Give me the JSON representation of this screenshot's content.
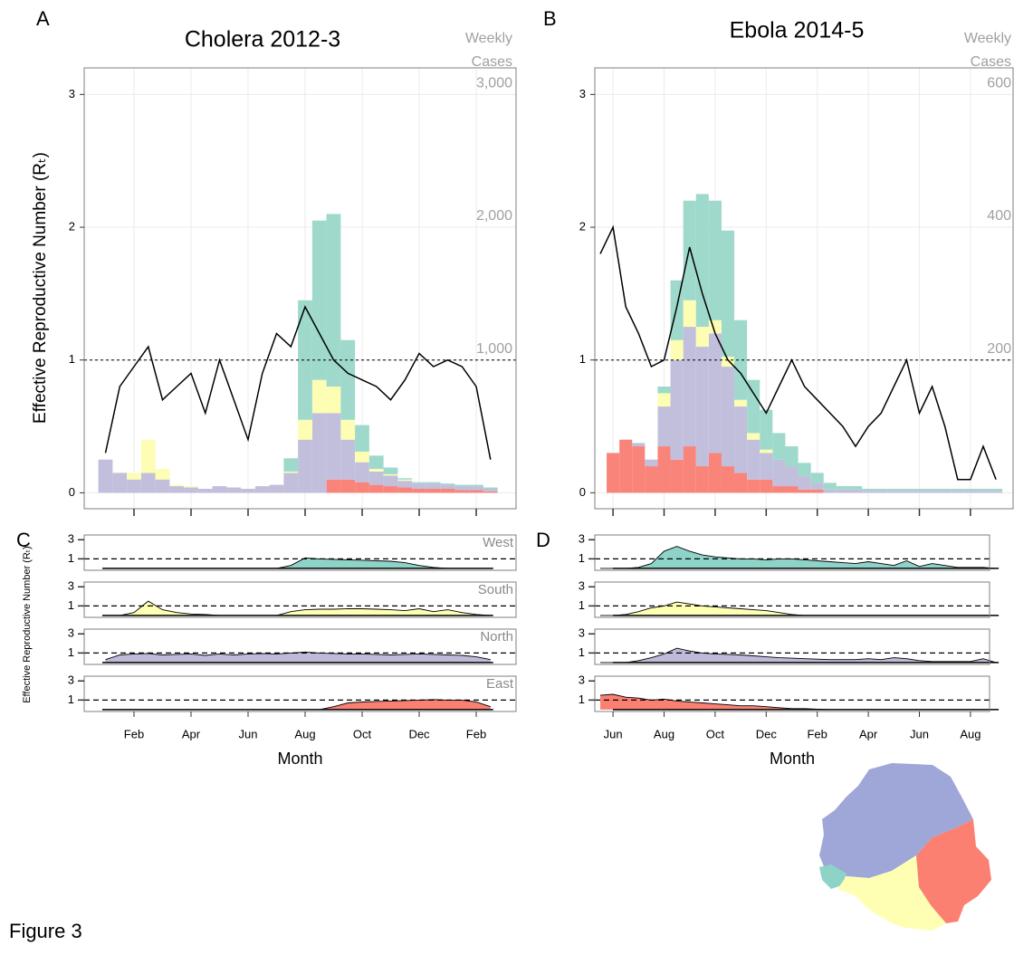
{
  "figure_label": "Figure 3",
  "chart_data": [
    {
      "type": "stacked_bar_line",
      "panel": "A",
      "facet_panel": "C",
      "title": "Cholera 2012-3",
      "y_label": "Effective Reproductive Number (Rₜ)",
      "y2_label": [
        "Weekly",
        "Cases"
      ],
      "x_label": "Month",
      "categories": [
        null,
        null,
        "Feb",
        null,
        null,
        null,
        "Apr",
        null,
        null,
        null,
        "Jun",
        null,
        null,
        null,
        "Aug",
        null,
        null,
        null,
        "Oct",
        null,
        null,
        null,
        "Dec",
        null,
        null,
        null,
        "Feb",
        null
      ],
      "ylim": [
        -0.12,
        3.2
      ],
      "yticks": [
        0,
        1,
        2,
        3
      ],
      "hline": 1,
      "grid": true,
      "y2lim": [
        -120,
        3200
      ],
      "y2ticks": [
        {
          "value": 1000,
          "label": "1,000"
        },
        {
          "value": 2000,
          "label": "2,000"
        },
        {
          "value": 3000,
          "label": "3,000"
        }
      ],
      "series": [
        {
          "color": "#f8847a",
          "axis": "y2",
          "values": [
            0,
            0,
            0,
            0,
            0,
            0,
            0,
            0,
            0,
            0,
            0,
            0,
            0,
            0,
            0,
            0,
            100,
            100,
            80,
            60,
            50,
            40,
            30,
            30,
            30,
            20,
            20,
            10
          ]
        },
        {
          "color": "#c2bfdd",
          "axis": "y2",
          "values": [
            250,
            150,
            100,
            150,
            100,
            50,
            40,
            30,
            50,
            40,
            30,
            50,
            60,
            150,
            400,
            600,
            500,
            300,
            150,
            100,
            80,
            50,
            40,
            40,
            30,
            30,
            30,
            20
          ]
        },
        {
          "color": "#fdfdb3",
          "axis": "y2",
          "values": [
            0,
            0,
            50,
            250,
            80,
            10,
            10,
            0,
            0,
            0,
            0,
            0,
            0,
            10,
            150,
            250,
            200,
            150,
            80,
            20,
            10,
            10,
            0,
            0,
            0,
            0,
            0,
            0
          ]
        },
        {
          "color": "#9ed9cc",
          "axis": "y2",
          "values": [
            0,
            0,
            0,
            0,
            0,
            0,
            0,
            0,
            0,
            0,
            0,
            0,
            0,
            100,
            900,
            1200,
            1300,
            600,
            200,
            100,
            50,
            10,
            10,
            10,
            10,
            10,
            10,
            10
          ]
        }
      ],
      "line": {
        "color": "#000000",
        "values": [
          0.3,
          0.8,
          0.95,
          1.1,
          0.7,
          0.8,
          0.9,
          0.6,
          1.0,
          0.7,
          0.4,
          0.9,
          1.2,
          1.1,
          1.4,
          1.2,
          1.0,
          0.9,
          0.85,
          0.8,
          0.7,
          0.85,
          1.05,
          0.95,
          1.0,
          0.95,
          0.8,
          0.25
        ]
      },
      "facets": {
        "y_label": "Effective Reproductive Number (Rₜ)",
        "ylim": [
          -0.2,
          3.5
        ],
        "yticks": [
          1,
          3
        ],
        "hline": 1,
        "series": [
          {
            "name": "West",
            "color": "#8dd3c7",
            "values": [
              0,
              0,
              0,
              0,
              0,
              0,
              0,
              0,
              0,
              0,
              0,
              0,
              0,
              0.3,
              1.1,
              1.0,
              0.95,
              0.9,
              0.85,
              0.8,
              0.75,
              0.6,
              0.3,
              0.1,
              0,
              0,
              0,
              0
            ]
          },
          {
            "name": "South",
            "color": "#ffffb3",
            "values": [
              0,
              0,
              0.3,
              1.5,
              0.6,
              0.3,
              0.15,
              0.1,
              0,
              0,
              0,
              0,
              0,
              0.4,
              0.6,
              0.65,
              0.65,
              0.7,
              0.7,
              0.65,
              0.6,
              0.5,
              0.7,
              0.4,
              0.6,
              0.3,
              0.1,
              0
            ]
          },
          {
            "name": "North",
            "color": "#bebada",
            "values": [
              0.3,
              0.8,
              0.9,
              0.95,
              0.8,
              0.85,
              0.9,
              0.75,
              0.9,
              0.8,
              0.9,
              0.95,
              0.9,
              1.0,
              1.1,
              1.0,
              0.95,
              0.9,
              0.9,
              0.85,
              0.8,
              0.85,
              0.9,
              0.85,
              0.8,
              0.75,
              0.6,
              0.3
            ]
          },
          {
            "name": "East",
            "color": "#fb8072",
            "values": [
              0,
              0,
              0,
              0,
              0,
              0,
              0,
              0,
              0,
              0,
              0,
              0,
              0,
              0,
              0,
              0,
              0.3,
              0.7,
              0.8,
              0.85,
              0.9,
              0.95,
              1.0,
              1.05,
              1.0,
              1.0,
              0.8,
              0.3
            ]
          }
        ]
      }
    },
    {
      "type": "stacked_bar_line",
      "panel": "B",
      "facet_panel": "D",
      "title": "Ebola 2014-5",
      "y2_label": [
        "Weekly",
        "Cases"
      ],
      "x_label": "Month",
      "categories": [
        null,
        "Jun",
        null,
        null,
        null,
        "Aug",
        null,
        null,
        null,
        "Oct",
        null,
        null,
        null,
        "Dec",
        null,
        null,
        null,
        "Feb",
        null,
        null,
        null,
        "Apr",
        null,
        null,
        null,
        "Jun",
        null,
        null,
        null,
        "Aug",
        null,
        null
      ],
      "ylim": [
        -0.12,
        3.2
      ],
      "yticks": [
        0,
        1,
        2,
        3
      ],
      "hline": 1,
      "grid": true,
      "y2lim": [
        -24,
        640
      ],
      "y2ticks": [
        200,
        400,
        600
      ],
      "series": [
        {
          "color": "#f8847a",
          "axis": "y2",
          "values": [
            0,
            60,
            80,
            70,
            40,
            70,
            50,
            70,
            40,
            60,
            40,
            30,
            20,
            20,
            10,
            10,
            5,
            5,
            0,
            0,
            0,
            0,
            0,
            0,
            0,
            0,
            0,
            0,
            0,
            0,
            0,
            0
          ]
        },
        {
          "color": "#c2bfdd",
          "axis": "y2",
          "values": [
            0,
            0,
            0,
            5,
            10,
            60,
            150,
            180,
            180,
            180,
            150,
            100,
            60,
            40,
            40,
            30,
            20,
            10,
            5,
            5,
            5,
            3,
            3,
            3,
            3,
            3,
            3,
            3,
            3,
            3,
            3,
            3
          ]
        },
        {
          "color": "#fdfdb3",
          "axis": "y2",
          "values": [
            0,
            0,
            0,
            0,
            0,
            20,
            30,
            40,
            30,
            20,
            15,
            10,
            10,
            5,
            0,
            0,
            0,
            0,
            0,
            0,
            0,
            0,
            0,
            0,
            0,
            0,
            0,
            0,
            0,
            0,
            0,
            0
          ]
        },
        {
          "color": "#9ed9cc",
          "axis": "y2",
          "values": [
            0,
            0,
            0,
            0,
            0,
            10,
            90,
            150,
            200,
            180,
            190,
            120,
            80,
            60,
            40,
            30,
            20,
            15,
            10,
            5,
            5,
            3,
            3,
            3,
            3,
            3,
            3,
            3,
            3,
            3,
            3,
            3
          ]
        }
      ],
      "line": {
        "color": "#000000",
        "values": [
          1.8,
          2.0,
          1.4,
          1.2,
          0.95,
          1.0,
          1.4,
          1.85,
          1.5,
          1.2,
          1.0,
          0.9,
          0.75,
          0.6,
          0.8,
          1.0,
          0.8,
          0.7,
          0.6,
          0.5,
          0.35,
          0.5,
          0.6,
          0.8,
          1.0,
          0.6,
          0.8,
          0.5,
          0.1,
          0.1,
          0.35,
          0.1
        ]
      },
      "facets": {
        "ylim": [
          -0.2,
          3.5
        ],
        "yticks": [
          1,
          3
        ],
        "hline": 1,
        "series": [
          {
            "color": "#8dd3c7",
            "values": [
              0,
              0,
              0,
              0.1,
              0.5,
              1.8,
              2.3,
              1.8,
              1.4,
              1.2,
              1.1,
              1.0,
              1.0,
              0.9,
              1.0,
              1.0,
              0.9,
              0.8,
              0.7,
              0.6,
              0.5,
              0.7,
              0.5,
              0.3,
              0.8,
              0.2,
              0.5,
              0.3,
              0.1,
              0.1,
              0.1,
              0
            ]
          },
          {
            "color": "#ffffb3",
            "values": [
              0,
              0,
              0.1,
              0.4,
              0.8,
              1.0,
              1.4,
              1.2,
              1.0,
              0.9,
              0.8,
              0.7,
              0.6,
              0.5,
              0.3,
              0.1,
              0,
              0,
              0,
              0,
              0,
              0,
              0,
              0,
              0,
              0,
              0,
              0,
              0,
              0,
              0,
              0
            ]
          },
          {
            "color": "#bebada",
            "values": [
              0,
              0,
              0,
              0.2,
              0.5,
              0.9,
              1.5,
              1.2,
              1.0,
              0.9,
              0.85,
              0.8,
              0.7,
              0.6,
              0.5,
              0.45,
              0.4,
              0.35,
              0.3,
              0.3,
              0.3,
              0.4,
              0.3,
              0.5,
              0.4,
              0.2,
              0.1,
              0.1,
              0.1,
              0.1,
              0.4,
              0
            ]
          },
          {
            "color": "#fb8072",
            "values": [
              1.5,
              1.6,
              1.3,
              1.2,
              1.0,
              1.1,
              0.9,
              0.8,
              0.7,
              0.6,
              0.5,
              0.4,
              0.4,
              0.3,
              0.2,
              0.1,
              0.1,
              0.05,
              0,
              0,
              0,
              0,
              0,
              0,
              0,
              0,
              0,
              0,
              0,
              0,
              0,
              0
            ]
          }
        ]
      }
    }
  ]
}
